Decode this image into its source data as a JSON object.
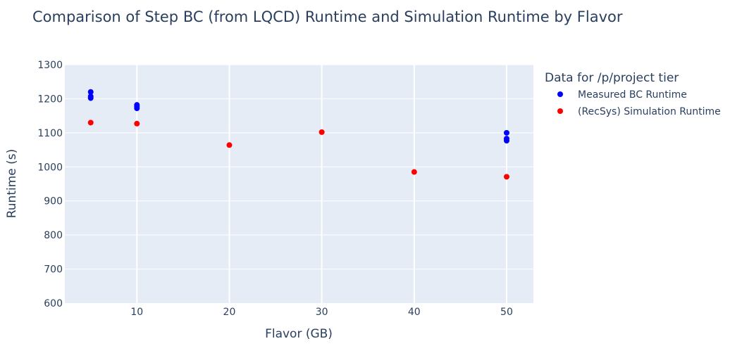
{
  "chart_data": {
    "type": "scatter",
    "title": "Comparison of Step BC (from LQCD) Runtime and Simulation Runtime by Flavor",
    "xlabel": "Flavor (GB)",
    "ylabel": "Runtime (s)",
    "xlim": [
      2.2,
      52.9
    ],
    "ylim": [
      600,
      1300
    ],
    "xticks": [
      10,
      20,
      30,
      40,
      50
    ],
    "yticks": [
      600,
      700,
      800,
      900,
      1000,
      1100,
      1200,
      1300
    ],
    "grid": true,
    "legend_title": "Data for /p/project tier",
    "legend_position": "right",
    "series": [
      {
        "name": "Measured BC Runtime",
        "color": "#0000ff",
        "points": [
          {
            "x": 5,
            "y": 1220
          },
          {
            "x": 5,
            "y": 1207
          },
          {
            "x": 5,
            "y": 1202
          },
          {
            "x": 10,
            "y": 1182
          },
          {
            "x": 10,
            "y": 1177
          },
          {
            "x": 10,
            "y": 1172
          },
          {
            "x": 50,
            "y": 1100
          },
          {
            "x": 50,
            "y": 1083
          },
          {
            "x": 50,
            "y": 1077
          }
        ]
      },
      {
        "name": "(RecSys) Simulation Runtime",
        "color": "#ff0000",
        "points": [
          {
            "x": 5,
            "y": 1130
          },
          {
            "x": 10,
            "y": 1127
          },
          {
            "x": 20,
            "y": 1064
          },
          {
            "x": 30,
            "y": 1102
          },
          {
            "x": 40,
            "y": 985
          },
          {
            "x": 50,
            "y": 971
          }
        ]
      }
    ]
  }
}
